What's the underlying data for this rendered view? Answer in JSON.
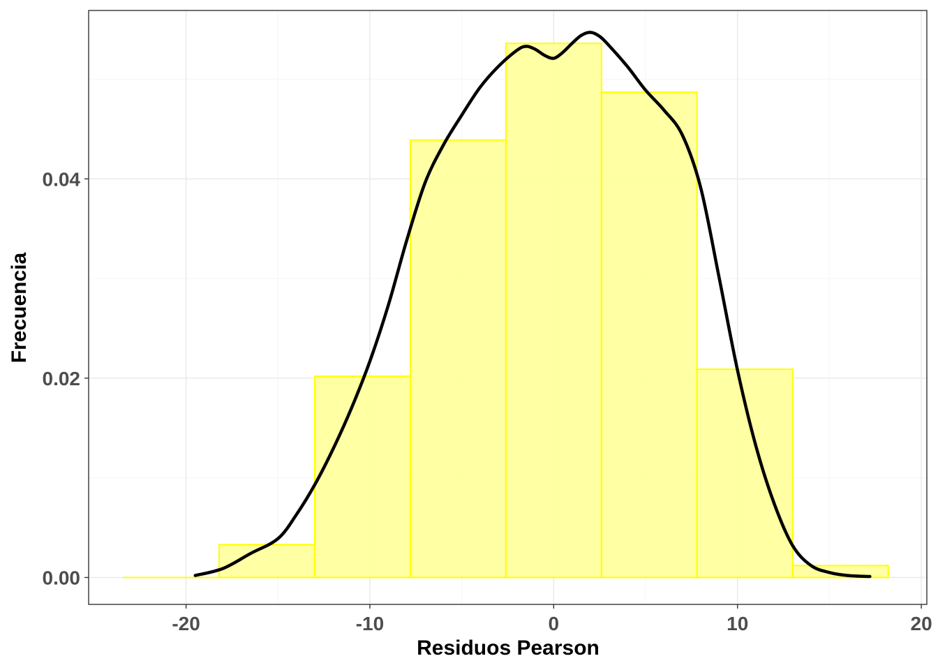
{
  "chart_data": {
    "type": "bar",
    "subtype": "histogram-with-density",
    "xlabel": "Residuos Pearson",
    "ylabel": "Frecuencia",
    "xlim": [
      -25.3,
      20.3
    ],
    "ylim": [
      -0.0027,
      0.0569
    ],
    "x_ticks": [
      -20,
      -10,
      0,
      10,
      20
    ],
    "x_tick_labels": [
      "-20",
      "-10",
      "0",
      "10",
      "20"
    ],
    "x_minor_ticks": [
      -15,
      -5,
      5,
      15
    ],
    "y_ticks": [
      0.0,
      0.02,
      0.04
    ],
    "y_tick_labels": [
      "0.00",
      "0.02",
      "0.04"
    ],
    "y_minor_ticks": [
      0.01,
      0.03,
      0.05
    ],
    "grid": true,
    "bins": [
      {
        "x0": -23.4,
        "x1": -18.2,
        "value": 0.0
      },
      {
        "x0": -18.2,
        "x1": -13.0,
        "value": 0.0033
      },
      {
        "x0": -13.0,
        "x1": -7.8,
        "value": 0.0202
      },
      {
        "x0": -7.8,
        "x1": -2.6,
        "value": 0.0439
      },
      {
        "x0": -2.6,
        "x1": 2.6,
        "value": 0.0536
      },
      {
        "x0": 2.6,
        "x1": 7.8,
        "value": 0.0487
      },
      {
        "x0": 7.8,
        "x1": 13.0,
        "value": 0.0209
      },
      {
        "x0": 13.0,
        "x1": 18.2,
        "value": 0.0012
      }
    ],
    "density": {
      "x": [
        -19.5,
        -18,
        -16.5,
        -15,
        -14,
        -13,
        -12,
        -11,
        -10,
        -9,
        -8,
        -7,
        -6,
        -5,
        -4,
        -3,
        -2,
        -1.5,
        -1,
        -0.5,
        0,
        0.5,
        1,
        1.5,
        2,
        2.5,
        3,
        4,
        5,
        6,
        7,
        8,
        9,
        10,
        11,
        12,
        13,
        14,
        15,
        16,
        17.2
      ],
      "y": [
        0.0002,
        0.0009,
        0.0024,
        0.0039,
        0.0063,
        0.0093,
        0.0129,
        0.017,
        0.0217,
        0.0273,
        0.0338,
        0.0396,
        0.0434,
        0.0464,
        0.0492,
        0.0513,
        0.0529,
        0.0533,
        0.053,
        0.0524,
        0.0521,
        0.0527,
        0.0536,
        0.0544,
        0.0547,
        0.0543,
        0.0534,
        0.0513,
        0.0489,
        0.0469,
        0.0444,
        0.0391,
        0.0301,
        0.0208,
        0.0132,
        0.0074,
        0.0032,
        0.0012,
        0.0005,
        0.0002,
        0.0001
      ]
    },
    "colors": {
      "bar_fill": "#ffff99",
      "bar_stroke": "#ffff00",
      "density_line": "#000000",
      "grid_major": "#ebebeb",
      "grid_minor": "#f5f5f5",
      "panel_border": "#333333",
      "axis_tick": "#333333"
    }
  }
}
